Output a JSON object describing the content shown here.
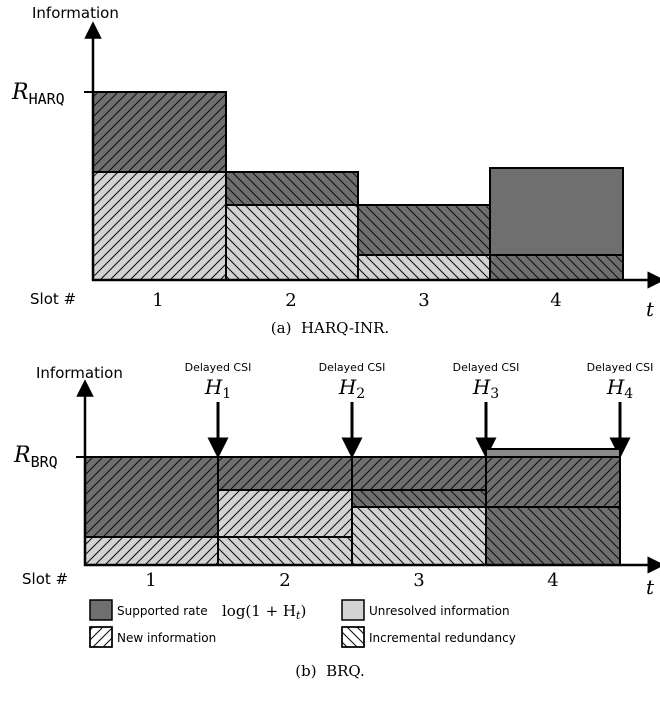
{
  "panel_a": {
    "y_axis_title": "Information",
    "ylabel_R": "R",
    "ylabel_sub": "HARQ",
    "slot_label": "Slot #",
    "time_label": "t",
    "slots": [
      "1",
      "2",
      "3",
      "4"
    ],
    "caption": "(a)  HARQ-INR."
  },
  "panel_b": {
    "y_axis_title": "Information",
    "ylabel_R": "R",
    "ylabel_sub": "BRQ",
    "slot_label": "Slot #",
    "time_label": "t",
    "slots": [
      "1",
      "2",
      "3",
      "4"
    ],
    "csi": [
      {
        "label": "Delayed CSI",
        "var": "H",
        "sub": "1"
      },
      {
        "label": "Delayed CSI",
        "var": "H",
        "sub": "2"
      },
      {
        "label": "Delayed CSI",
        "var": "H",
        "sub": "3"
      },
      {
        "label": "Delayed CSI",
        "var": "H",
        "sub": "4"
      }
    ],
    "caption": "(b)  BRQ."
  },
  "legend": {
    "supported_rate": "Supported rate",
    "supported_rate_formula": "log(1 + H",
    "supported_rate_formula_sub": "t",
    "supported_rate_formula_end": ")",
    "unresolved": "Unresolved information",
    "new_info": "New information",
    "incremental": "Incremental redundancy"
  },
  "colors": {
    "dark": "#6f6f6f",
    "light": "#d3d3d3",
    "stroke": "#000000"
  }
}
